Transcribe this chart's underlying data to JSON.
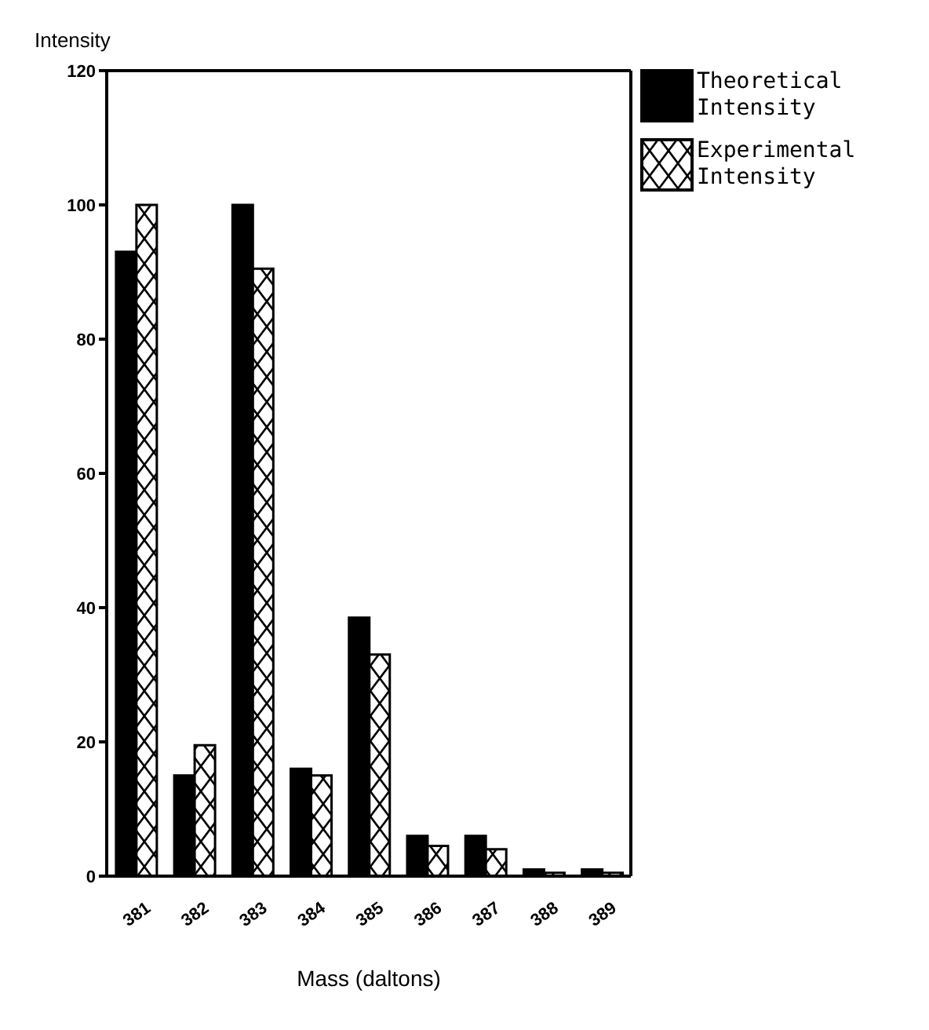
{
  "chart_data": {
    "type": "bar",
    "xlabel": "Mass (daltons)",
    "ylabel": "Intensity",
    "categories": [
      "381",
      "382",
      "383",
      "384",
      "385",
      "386",
      "387",
      "388",
      "389"
    ],
    "series": [
      {
        "name": "Theoretical Intensity",
        "color": "#000000",
        "values": [
          93,
          15,
          100,
          16,
          38.5,
          6,
          6,
          1,
          1
        ]
      },
      {
        "name": "Experimental Intensity",
        "color": "#000000",
        "values": [
          100,
          19.5,
          90.5,
          15,
          33,
          4.5,
          4,
          0.5,
          0.5
        ]
      }
    ],
    "ylim": [
      0,
      120
    ],
    "yticks": [
      0,
      20,
      40,
      60,
      80,
      100,
      120
    ],
    "grid": false,
    "legend": "top right"
  }
}
